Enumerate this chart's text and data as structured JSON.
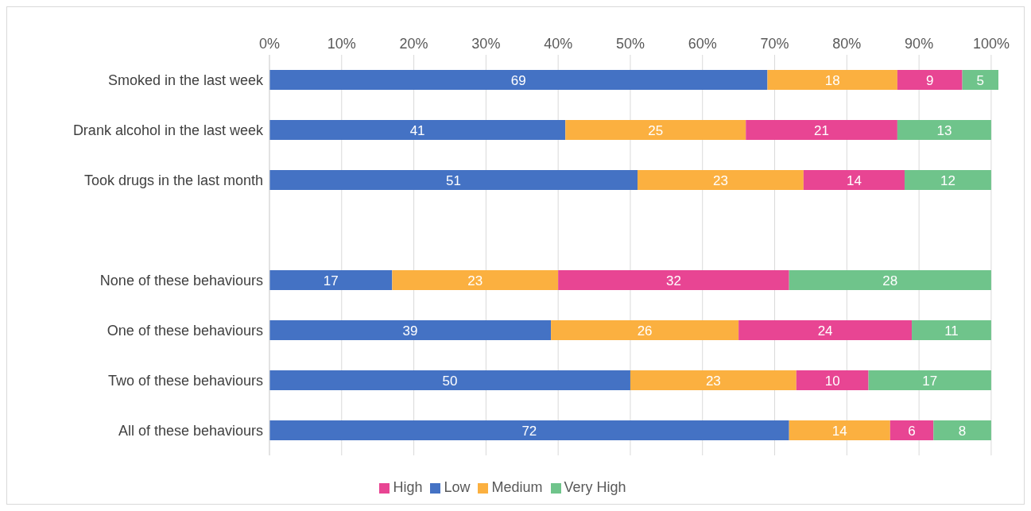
{
  "chart_data": {
    "type": "bar",
    "orientation": "horizontal",
    "stacked": true,
    "categories": [
      "Smoked in the last week",
      "Drank alcohol in the last week",
      "Took drugs in the last month",
      null,
      "None of these behaviours",
      "One of these behaviours",
      "Two of these behaviours",
      "All of these behaviours"
    ],
    "series": [
      {
        "name": "Low",
        "color": "#4472c4",
        "values": [
          69,
          41,
          51,
          null,
          17,
          39,
          50,
          72
        ]
      },
      {
        "name": "Medium",
        "color": "#fbb040",
        "values": [
          18,
          25,
          23,
          null,
          23,
          26,
          23,
          14
        ]
      },
      {
        "name": "High",
        "color": "#e84593",
        "values": [
          9,
          21,
          14,
          null,
          32,
          24,
          10,
          6
        ]
      },
      {
        "name": "Very High",
        "color": "#6fc48b",
        "values": [
          5,
          13,
          12,
          null,
          28,
          11,
          17,
          8
        ]
      }
    ],
    "xlim": [
      0,
      101
    ],
    "xticks": [
      {
        "value": 0,
        "label": "0%"
      },
      {
        "value": 10,
        "label": "10%"
      },
      {
        "value": 20,
        "label": "20%"
      },
      {
        "value": 30,
        "label": "30%"
      },
      {
        "value": 40,
        "label": "40%"
      },
      {
        "value": 50,
        "label": "50%"
      },
      {
        "value": 60,
        "label": "60%"
      },
      {
        "value": 70,
        "label": "70%"
      },
      {
        "value": 80,
        "label": "80%"
      },
      {
        "value": 90,
        "label": "90%"
      },
      {
        "value": 100,
        "label": "100%"
      }
    ],
    "grid": "x",
    "legend": "bottom",
    "data_labels": true
  }
}
